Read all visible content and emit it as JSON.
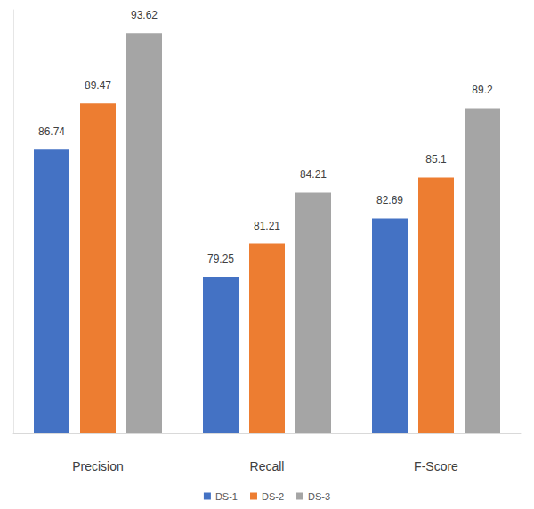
{
  "chart_data": {
    "type": "bar",
    "categories": [
      "Precision",
      "Recall",
      "F-Score"
    ],
    "series": [
      {
        "name": "DS-1",
        "color": "#4472c4",
        "values": [
          86.74,
          79.25,
          82.69
        ]
      },
      {
        "name": "DS-2",
        "color": "#ed7d31",
        "values": [
          89.47,
          81.21,
          85.1
        ]
      },
      {
        "name": "DS-3",
        "color": "#a5a5a5",
        "values": [
          93.62,
          84.21,
          89.2
        ]
      }
    ],
    "ylim": [
      70,
      95
    ],
    "grid": false,
    "legend": "bottom",
    "data_labels": true,
    "tick_labels": "x"
  }
}
